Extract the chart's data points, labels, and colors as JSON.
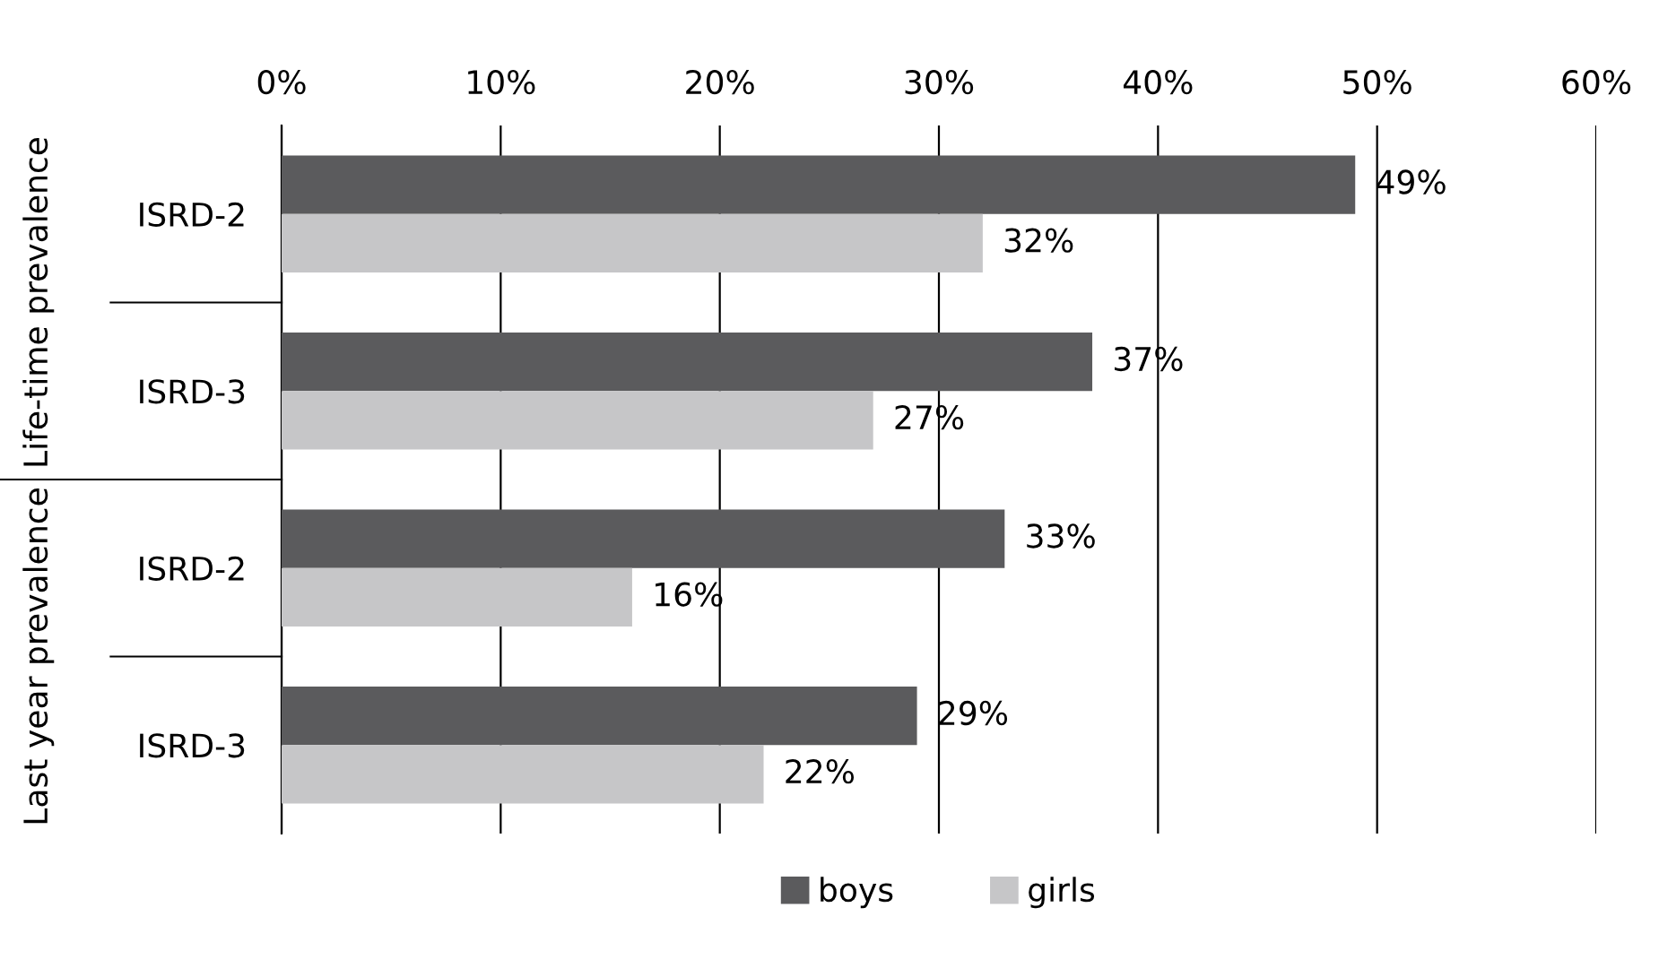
{
  "chart_data": {
    "type": "bar",
    "orientation": "horizontal",
    "categories": [
      "ISRD-2",
      "ISRD-3",
      "ISRD-2",
      "ISRD-3"
    ],
    "series": [
      {
        "name": "boys",
        "color": "#5b5b5d",
        "values": [
          49,
          37,
          33,
          29
        ],
        "value_labels": [
          "49%",
          "37%",
          "33%",
          "29%"
        ]
      },
      {
        "name": "girls",
        "color": "#c6c6c8",
        "values": [
          32,
          27,
          16,
          22
        ],
        "value_labels": [
          "32%",
          "27%",
          "16%",
          "22%"
        ]
      }
    ],
    "annotations": [
      "Life-time prevalence",
      "Last year prevalence"
    ],
    "xlim": [
      0,
      60
    ],
    "xticks": [
      {
        "value": 0,
        "label": "0%"
      },
      {
        "value": 10,
        "label": "10%"
      },
      {
        "value": 20,
        "label": "20%"
      },
      {
        "value": 30,
        "label": "30%"
      },
      {
        "value": 40,
        "label": "40%"
      },
      {
        "value": 50,
        "label": "50%"
      },
      {
        "value": 60,
        "label": "60%"
      }
    ],
    "grid": "x",
    "legend": "bottom"
  }
}
